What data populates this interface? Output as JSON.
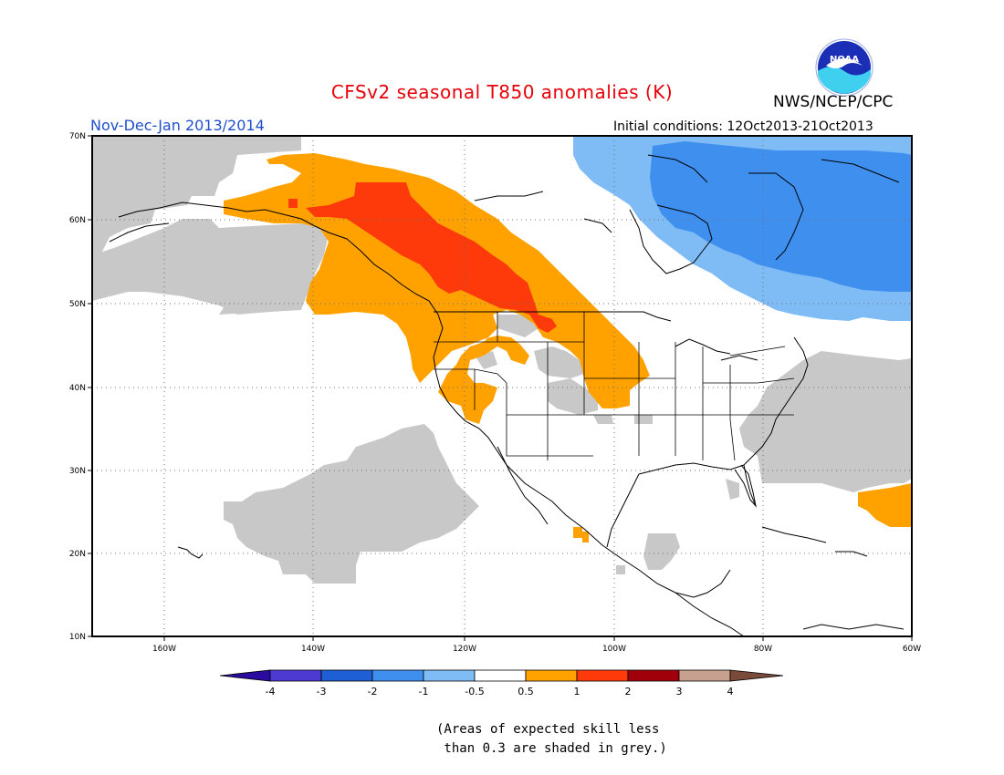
{
  "header": {
    "title": "CFSv2 seasonal T850 anomalies (K)",
    "subtitle": "Nov-Dec-Jan 2013/2014",
    "initial_conditions": "Initial conditions: 12Oct2013-21Oct2013",
    "agency": "NWS/NCEP/CPC",
    "logo_text": "NOAA"
  },
  "colors": {
    "title": "#e8000b",
    "subtitle": "#1f4fcf",
    "grey_skill": "#c8c8c8",
    "ocean": "#ffffff"
  },
  "map": {
    "projection": "cylindrical",
    "lon_range": [
      -172,
      -60
    ],
    "lat_range": [
      10,
      70
    ],
    "lat_ticks": [
      "10N",
      "20N",
      "30N",
      "40N",
      "50N",
      "60N",
      "70N"
    ],
    "lon_ticks": [
      "160W",
      "140W",
      "120W",
      "100W",
      "80W",
      "60W"
    ],
    "grid": true
  },
  "legend": {
    "labels": [
      "-4",
      "-3",
      "-2",
      "-1",
      "-0.5",
      "0.5",
      "1",
      "2",
      "3",
      "4"
    ],
    "colors": [
      "#2a0da0",
      "#4b3bd1",
      "#1f5fd6",
      "#3f8fef",
      "#7fbcf5",
      "#ffffff",
      "#ffa200",
      "#ff3a0a",
      "#a0000a",
      "#c8a090",
      "#7a4a3a"
    ],
    "note": "(Areas of expected skill less\n than 0.3 are shaded in grey.)"
  }
}
